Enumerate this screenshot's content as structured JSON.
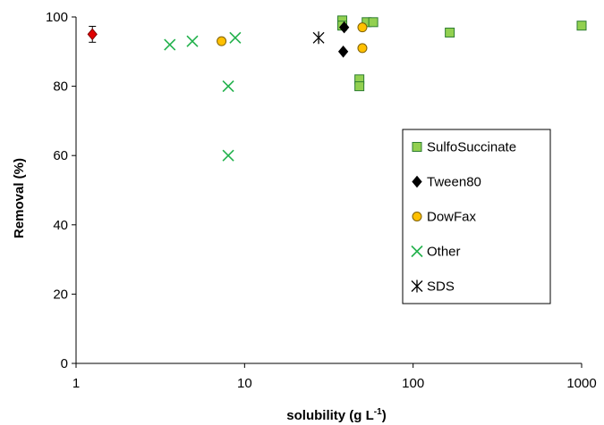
{
  "chart_data": {
    "type": "scatter",
    "xscale": "log",
    "xlim": [
      1,
      1000
    ],
    "ylim": [
      0,
      100
    ],
    "xticks": [
      1,
      10,
      100,
      1000
    ],
    "yticks": [
      0,
      20,
      40,
      60,
      80,
      100
    ],
    "xtick_labels": [
      "1",
      "10",
      "100",
      "1000"
    ],
    "ytick_labels": [
      "0",
      "20",
      "40",
      "60",
      "80",
      "100"
    ],
    "xlabel": "solubility  (g L",
    "xlabel_sup": "-1",
    "xlabel_end": ")",
    "ylabel": "Removal (%)",
    "grid": false,
    "legend_position": "right",
    "series": [
      {
        "name": "SulfoSuccinate",
        "marker": "square",
        "fill": "#92D050",
        "stroke": "#2E7D32",
        "points": [
          {
            "x": 38,
            "y": 99
          },
          {
            "x": 38,
            "y": 97.5
          },
          {
            "x": 48,
            "y": 82
          },
          {
            "x": 48,
            "y": 80
          },
          {
            "x": 53,
            "y": 98.5
          },
          {
            "x": 58,
            "y": 98.5
          },
          {
            "x": 165,
            "y": 95.5
          },
          {
            "x": 1000,
            "y": 97.5
          }
        ]
      },
      {
        "name": "Tween80",
        "marker": "diamond",
        "fill": "#000000",
        "stroke": "#000000",
        "points": [
          {
            "x": 39,
            "y": 97
          },
          {
            "x": 38.5,
            "y": 90
          }
        ]
      },
      {
        "name": "DowFax",
        "marker": "circle",
        "fill": "#FFC000",
        "stroke": "#7F6000",
        "points": [
          {
            "x": 7.3,
            "y": 93
          },
          {
            "x": 50,
            "y": 97
          },
          {
            "x": 50,
            "y": 91
          }
        ]
      },
      {
        "name": "Other",
        "marker": "x",
        "fill": "none",
        "stroke": "#22B14C",
        "points": [
          {
            "x": 3.6,
            "y": 92
          },
          {
            "x": 4.9,
            "y": 93
          },
          {
            "x": 8,
            "y": 80
          },
          {
            "x": 8,
            "y": 60
          },
          {
            "x": 8.8,
            "y": 94
          }
        ]
      },
      {
        "name": "SDS",
        "marker": "asterisk",
        "fill": "none",
        "stroke": "#000000",
        "points": [
          {
            "x": 27.5,
            "y": 94
          }
        ]
      },
      {
        "name": "",
        "marker": "diamond",
        "fill": "#E00000",
        "stroke": "#800000",
        "show_in_legend": false,
        "points": [
          {
            "x": 1.25,
            "y": 95,
            "err": 2.3
          }
        ]
      }
    ]
  }
}
